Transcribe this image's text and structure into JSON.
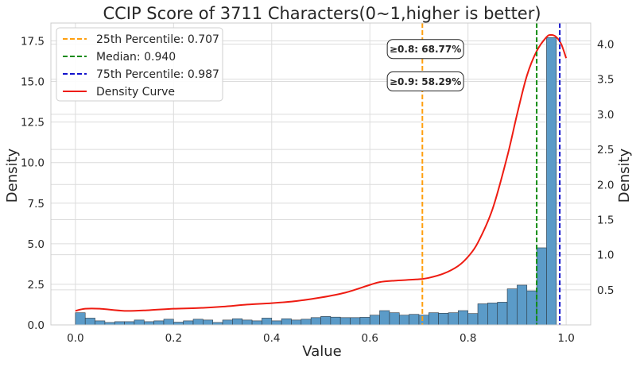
{
  "chart_data": {
    "type": "bar",
    "title": "CCIP Score of 3711 Characters(0~1,higher is better)",
    "xlabel": "Value",
    "ylabel_left": "Density",
    "ylabel_right": "Density",
    "xlim": [
      -0.05,
      1.05
    ],
    "ylim_left": [
      0,
      18.6
    ],
    "ylim_right": [
      0,
      4.3
    ],
    "x_ticks": [
      0.0,
      0.2,
      0.4,
      0.6,
      0.8,
      1.0
    ],
    "x_tick_labels": [
      "0.0",
      "0.2",
      "0.4",
      "0.6",
      "0.8",
      "1.0"
    ],
    "y_left_ticks": [
      0.0,
      2.5,
      5.0,
      7.5,
      10.0,
      12.5,
      15.0,
      17.5
    ],
    "y_left_tick_labels": [
      "0.0",
      "2.5",
      "5.0",
      "7.5",
      "10.0",
      "12.5",
      "15.0",
      "17.5"
    ],
    "y_right_ticks": [
      0.5,
      1.0,
      1.5,
      2.0,
      2.5,
      3.0,
      3.5,
      4.0
    ],
    "y_right_tick_labels": [
      "0.5",
      "1.0",
      "1.5",
      "2.0",
      "2.5",
      "3.0",
      "3.5",
      "4.0"
    ],
    "grid": true,
    "histogram": {
      "bin_start": 0.0,
      "bin_width": 0.02,
      "values": [
        0.75,
        0.42,
        0.25,
        0.15,
        0.2,
        0.2,
        0.3,
        0.2,
        0.25,
        0.35,
        0.17,
        0.25,
        0.35,
        0.3,
        0.15,
        0.3,
        0.38,
        0.3,
        0.25,
        0.42,
        0.25,
        0.38,
        0.3,
        0.35,
        0.45,
        0.52,
        0.48,
        0.45,
        0.45,
        0.47,
        0.6,
        0.88,
        0.75,
        0.6,
        0.65,
        0.6,
        0.75,
        0.72,
        0.75,
        0.88,
        0.7,
        1.3,
        1.35,
        1.4,
        2.22,
        2.45,
        2.1,
        4.75,
        17.7
      ],
      "color": "#5b9bc8"
    },
    "density_curve": {
      "name": "Density Curve",
      "color": "#ee1c12",
      "x": [
        0.0,
        0.02,
        0.05,
        0.1,
        0.15,
        0.2,
        0.25,
        0.3,
        0.35,
        0.4,
        0.45,
        0.5,
        0.55,
        0.6,
        0.62,
        0.65,
        0.7,
        0.72,
        0.75,
        0.78,
        0.8,
        0.82,
        0.85,
        0.88,
        0.9,
        0.92,
        0.94,
        0.96,
        0.97,
        0.98,
        0.99,
        1.0
      ],
      "y": [
        0.2,
        0.23,
        0.23,
        0.2,
        0.21,
        0.23,
        0.24,
        0.26,
        0.29,
        0.31,
        0.34,
        0.39,
        0.46,
        0.57,
        0.61,
        0.63,
        0.65,
        0.67,
        0.73,
        0.84,
        0.97,
        1.17,
        1.65,
        2.4,
        3.0,
        3.55,
        3.9,
        4.1,
        4.13,
        4.1,
        4.0,
        3.8
      ]
    },
    "percentile_lines": [
      {
        "label": "25th Percentile: 0.707",
        "value": 0.707,
        "color": "#ff9f0f"
      },
      {
        "label": "Median: 0.940",
        "value": 0.94,
        "color": "#0f8a0f"
      },
      {
        "label": "75th Percentile: 0.987",
        "value": 0.987,
        "color": "#1212cc"
      }
    ],
    "legend": {
      "placement": "top-left",
      "entries": [
        "25th Percentile: 0.707",
        "Median: 0.940",
        "75th Percentile: 0.987",
        "Density Curve"
      ]
    },
    "annotations": [
      {
        "text": "≥0.8: 68.77%",
        "x": 0.71,
        "y": 17.0
      },
      {
        "text": "≥0.9: 58.29%",
        "x": 0.71,
        "y": 15.0
      }
    ]
  }
}
